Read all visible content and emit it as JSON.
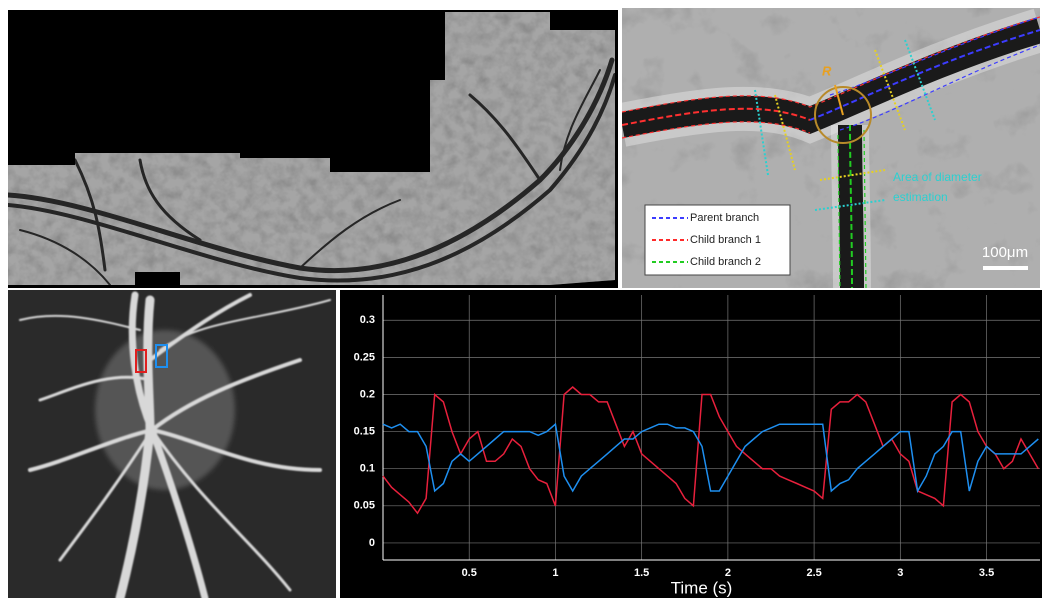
{
  "panel_b": {
    "legend": [
      {
        "label": "Parent branch",
        "color": "#3c3cff"
      },
      {
        "label": "Child branch 1",
        "color": "#ff2a2a"
      },
      {
        "label": "Child branch 2",
        "color": "#22cc22"
      }
    ],
    "scale_bar": "100μm",
    "radius_label": "R",
    "annotation": [
      "Area of diameter",
      "estimation"
    ]
  },
  "chart_data": {
    "type": "line",
    "x_label": "Time (s)",
    "x": [
      0,
      0.05,
      0.1,
      0.15,
      0.2,
      0.25,
      0.3,
      0.35,
      0.4,
      0.45,
      0.5,
      0.55,
      0.6,
      0.65,
      0.7,
      0.75,
      0.8,
      0.85,
      0.9,
      0.95,
      1,
      1.05,
      1.1,
      1.15,
      1.2,
      1.25,
      1.3,
      1.35,
      1.4,
      1.45,
      1.5,
      1.55,
      1.6,
      1.65,
      1.7,
      1.75,
      1.8,
      1.85,
      1.9,
      1.95,
      2,
      2.05,
      2.1,
      2.15,
      2.2,
      2.25,
      2.3,
      2.35,
      2.4,
      2.45,
      2.5,
      2.55,
      2.6,
      2.65,
      2.7,
      2.75,
      2.8,
      2.85,
      2.9,
      2.95,
      3,
      3.05,
      3.1,
      3.15,
      3.2,
      3.25,
      3.3,
      3.35,
      3.4,
      3.45,
      3.5,
      3.55,
      3.6,
      3.65,
      3.7,
      3.75,
      3.8
    ],
    "series": [
      {
        "color": "#e8203c",
        "values": [
          0.09,
          0.075,
          0.065,
          0.055,
          0.04,
          0.06,
          0.2,
          0.19,
          0.15,
          0.12,
          0.14,
          0.15,
          0.11,
          0.11,
          0.12,
          0.14,
          0.13,
          0.1,
          0.085,
          0.08,
          0.05,
          0.2,
          0.21,
          0.2,
          0.2,
          0.19,
          0.19,
          0.16,
          0.13,
          0.15,
          0.12,
          0.11,
          0.1,
          0.09,
          0.08,
          0.06,
          0.05,
          0.2,
          0.2,
          0.17,
          0.15,
          0.13,
          0.12,
          0.11,
          0.1,
          0.1,
          0.09,
          0.085,
          0.08,
          0.075,
          0.07,
          0.06,
          0.18,
          0.19,
          0.19,
          0.2,
          0.19,
          0.16,
          0.13,
          0.14,
          0.12,
          0.11,
          0.07,
          0.065,
          0.06,
          0.05,
          0.19,
          0.2,
          0.19,
          0.15,
          0.13,
          0.12,
          0.1,
          0.11,
          0.14,
          0.12,
          0.1
        ]
      },
      {
        "color": "#1e8ff0",
        "values": [
          0.16,
          0.155,
          0.16,
          0.15,
          0.15,
          0.13,
          0.07,
          0.08,
          0.11,
          0.12,
          0.11,
          0.12,
          0.13,
          0.14,
          0.15,
          0.15,
          0.15,
          0.15,
          0.145,
          0.15,
          0.16,
          0.09,
          0.07,
          0.09,
          0.1,
          0.11,
          0.12,
          0.13,
          0.14,
          0.14,
          0.15,
          0.155,
          0.16,
          0.16,
          0.155,
          0.155,
          0.15,
          0.13,
          0.07,
          0.07,
          0.09,
          0.11,
          0.13,
          0.14,
          0.15,
          0.155,
          0.16,
          0.16,
          0.16,
          0.16,
          0.16,
          0.16,
          0.07,
          0.08,
          0.085,
          0.1,
          0.11,
          0.12,
          0.13,
          0.14,
          0.15,
          0.15,
          0.07,
          0.09,
          0.12,
          0.13,
          0.15,
          0.15,
          0.07,
          0.11,
          0.13,
          0.12,
          0.12,
          0.12,
          0.12,
          0.13,
          0.14
        ]
      }
    ],
    "xlim": [
      0,
      3.81
    ],
    "ylim": [
      -0.023,
      0.334
    ],
    "xticks": [
      0.5,
      1,
      1.5,
      2,
      2.5,
      3,
      3.5
    ],
    "yticks": [
      0,
      0.05,
      0.1,
      0.15,
      0.2,
      0.25,
      0.3
    ],
    "grid": true
  }
}
